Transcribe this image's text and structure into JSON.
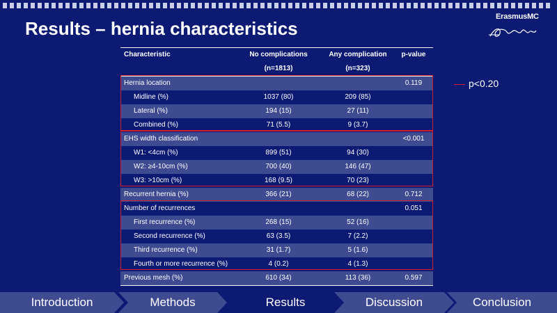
{
  "slide": {
    "title": "Results – hernia characteristics",
    "logo_text": "ErasmusMC",
    "legend": "p<0.20"
  },
  "table": {
    "headers": [
      "Characteristic",
      "No complications",
      "Any complication",
      "p-value"
    ],
    "subheaders": [
      "",
      "(n=1813)",
      "(n=323)",
      ""
    ],
    "rows": [
      {
        "label": "Hernia location",
        "no": "",
        "any": "",
        "p": "0.119"
      },
      {
        "label": "Midline (%)",
        "no": "1037 (80)",
        "any": "209 (85)",
        "p": ""
      },
      {
        "label": "Lateral (%)",
        "no": "194 (15)",
        "any": "27 (11)",
        "p": ""
      },
      {
        "label": "Combined (%)",
        "no": "71 (5.5)",
        "any": "9 (3.7)",
        "p": ""
      },
      {
        "label": "EHS width classification",
        "no": "",
        "any": "",
        "p": "<0.001"
      },
      {
        "label": "W1: <4cm (%)",
        "no": "899 (51)",
        "any": "94 (30)",
        "p": ""
      },
      {
        "label": "W2: ≥4-10cm (%)",
        "no": "700 (40)",
        "any": "146 (47)",
        "p": ""
      },
      {
        "label": "W3: >10cm (%)",
        "no": "168 (9.5)",
        "any": "70 (23)",
        "p": ""
      },
      {
        "label": "Recurrent hernia (%)",
        "no": "366 (21)",
        "any": "68 (22)",
        "p": "0.712"
      },
      {
        "label": "Number of recurrences",
        "no": "",
        "any": "",
        "p": "0.051"
      },
      {
        "label": "First recurrence (%)",
        "no": "268 (15)",
        "any": "52 (16)",
        "p": ""
      },
      {
        "label": "Second recurrence (%)",
        "no": "63 (3.5)",
        "any": "7 (2.2)",
        "p": ""
      },
      {
        "label": "Third recurrence (%)",
        "no": "31 (1.7)",
        "any": "5 (1.6)",
        "p": ""
      },
      {
        "label": "Fourth or more recurrence (%)",
        "no": "4 (0.2)",
        "any": "4 (1.3)",
        "p": ""
      },
      {
        "label": "Previous mesh (%)",
        "no": "610 (34)",
        "any": "113 (36)",
        "p": "0.597"
      }
    ]
  },
  "nav": {
    "items": [
      "Introduction",
      "Methods",
      "Results",
      "Discussion",
      "Conclusion"
    ],
    "active": "Results"
  },
  "colors": {
    "background": "#0d1a73",
    "shaded_row": "#3e4b91",
    "highlight_box": "#d11e2c"
  }
}
